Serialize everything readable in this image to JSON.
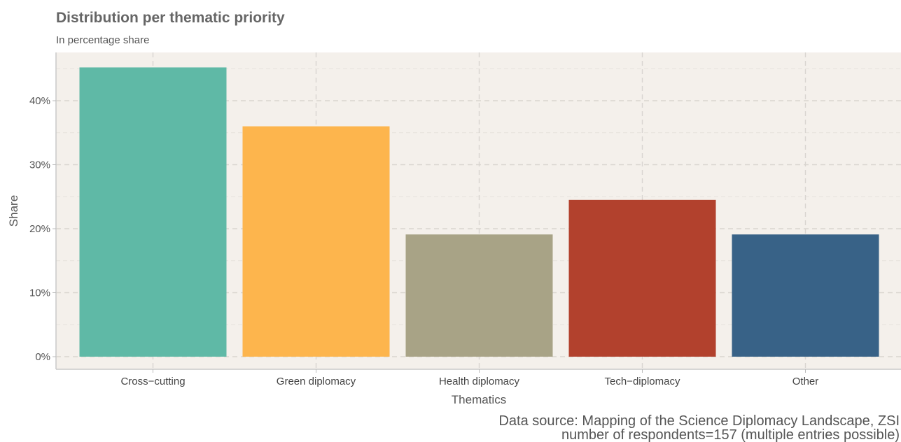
{
  "chart_data": {
    "type": "bar",
    "title": "Distribution per thematic priority",
    "subtitle": "In percentage share",
    "xlabel": "Thematics",
    "ylabel": "Share",
    "categories": [
      "Cross−cutting",
      "Green diplomacy",
      "Health diplomacy",
      "Tech−diplomacy",
      "Other"
    ],
    "values": [
      45.2,
      36.0,
      19.1,
      24.5,
      19.1
    ],
    "value_unit": "%",
    "ylim": [
      0,
      47.5
    ],
    "yticks": [
      0,
      10,
      20,
      30,
      40
    ],
    "ytick_labels": [
      "0%",
      "10%",
      "20%",
      "30%",
      "40%"
    ],
    "grid": true,
    "legend": "none",
    "colors": [
      "#5fb9a6",
      "#fdb54d",
      "#a8a386",
      "#b2412d",
      "#386287"
    ],
    "panel_background": "#f4f0eb",
    "caption_lines": [
      "Data source: Mapping of the Science Diplomacy Landscape, ZSI",
      "number of respondents=157 (multiple entries possible)"
    ]
  }
}
